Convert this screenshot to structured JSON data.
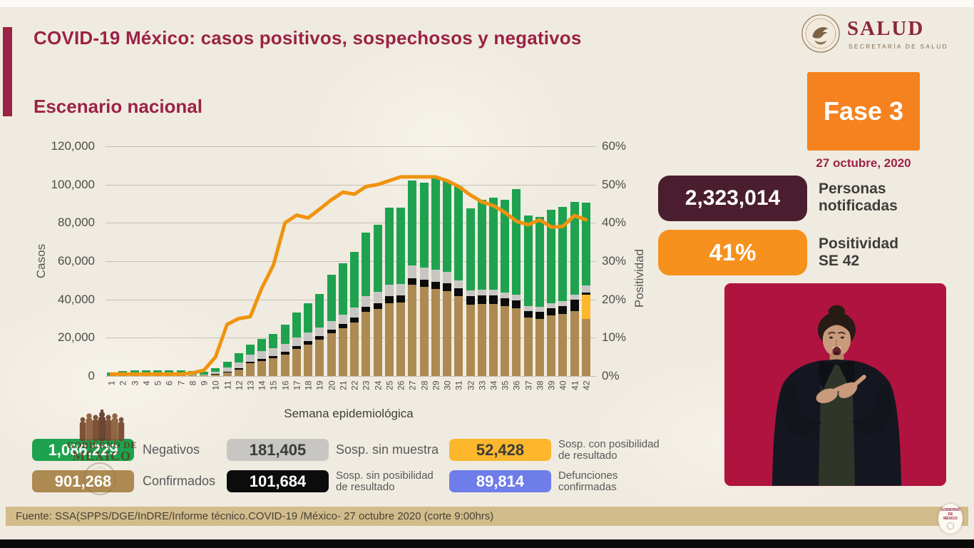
{
  "header": {
    "title": "COVID-19 México: casos positivos, sospechosos y negativos",
    "subtitle": "Escenario nacional",
    "logo": {
      "wordmark": "SALUD",
      "subtext": "SECRETARÍA DE SALUD"
    }
  },
  "phase": {
    "label": "Fase 3",
    "date": "27 octubre, 2020"
  },
  "stats": {
    "personas": {
      "value": "2,323,014",
      "label": "Personas\nnotificadas",
      "color": "#4a1e2f"
    },
    "positividad": {
      "value": "41%",
      "label": "Positividad\nSE 42",
      "color": "#f6911e"
    }
  },
  "legend": {
    "items": [
      {
        "value": "1,086,229",
        "label": "Negativos",
        "color": "#1ea24f"
      },
      {
        "value": "901,268",
        "label": "Confirmados",
        "color": "#ad8a52"
      },
      {
        "value": "181,405",
        "label": "Sosp. sin muestra",
        "color": "#c8c6c3"
      },
      {
        "value": "101,684",
        "label": "Sosp. sin posibilidad\nde resultado",
        "color": "#0c0c0c"
      },
      {
        "value": "52,428",
        "label": "Sosp. con posibilidad\nde resultado",
        "color": "#fcb72d"
      },
      {
        "value": "89,814",
        "label": "Defunciones\nconfirmadas",
        "color": "#6e7de9"
      }
    ]
  },
  "watermark": {
    "line1": "GOBIERNO DE",
    "line2": "MÉXICO"
  },
  "footer": {
    "source": "Fuente: SSA(SPPS/DGE/InDRE/Informe técnico.COVID-19 /México- 27 octubre 2020 (corte 9:00hrs)",
    "badge": "GOBIERNO DE\nMÉXICO"
  },
  "chart_data": {
    "type": "bar",
    "subtype": "stacked-bars-with-line",
    "title": "Escenario nacional",
    "xlabel": "Semana epidemiológica",
    "ylabel": "Casos",
    "y2label": "Positividad",
    "ylim": [
      0,
      120000
    ],
    "y2lim": [
      0,
      60
    ],
    "yticks": [
      "0",
      "20,000",
      "40,000",
      "60,000",
      "80,000",
      "100,000",
      "120,000"
    ],
    "y2ticks": [
      "0%",
      "10%",
      "20%",
      "30%",
      "40%",
      "50%",
      "60%"
    ],
    "grid": true,
    "x": [
      1,
      2,
      3,
      4,
      5,
      6,
      7,
      8,
      9,
      10,
      11,
      12,
      13,
      14,
      15,
      16,
      17,
      18,
      19,
      20,
      21,
      22,
      23,
      24,
      25,
      26,
      27,
      28,
      29,
      30,
      31,
      32,
      33,
      34,
      35,
      36,
      37,
      38,
      39,
      40,
      41,
      42
    ],
    "series": [
      {
        "name": "Confirmados",
        "color": "#ad8a52",
        "values": [
          200,
          200,
          300,
          300,
          300,
          300,
          300,
          300,
          400,
          800,
          1800,
          3500,
          6600,
          8000,
          9300,
          11300,
          14000,
          16500,
          19000,
          22500,
          25000,
          28000,
          33400,
          35000,
          38000,
          38500,
          47600,
          46500,
          45500,
          44500,
          41700,
          37300,
          37500,
          37500,
          36500,
          35400,
          30600,
          30000,
          31500,
          32400,
          34000,
          30000
        ]
      },
      {
        "name": "Sosp. con posibilidad de resultado",
        "color": "#fcb72d",
        "values": [
          0,
          0,
          0,
          0,
          0,
          0,
          0,
          0,
          0,
          0,
          0,
          0,
          0,
          0,
          0,
          0,
          0,
          0,
          0,
          0,
          0,
          0,
          0,
          0,
          0,
          0,
          0,
          0,
          0,
          0,
          0,
          0,
          0,
          0,
          0,
          0,
          0,
          0,
          0,
          0,
          0,
          12500
        ]
      },
      {
        "name": "Sosp. sin posibilidad de resultado",
        "color": "#0c0c0c",
        "values": [
          0,
          0,
          0,
          0,
          0,
          0,
          0,
          0,
          100,
          200,
          300,
          500,
          900,
          1100,
          1200,
          1500,
          1700,
          1800,
          1900,
          1900,
          2200,
          2500,
          2700,
          3000,
          3700,
          3600,
          3500,
          3800,
          3700,
          3800,
          4300,
          4300,
          4500,
          4500,
          4200,
          4100,
          3500,
          3500,
          4000,
          4000,
          6000,
          1000
        ]
      },
      {
        "name": "Sosp. sin muestra",
        "color": "#c8c6c3",
        "values": [
          300,
          300,
          300,
          300,
          300,
          300,
          300,
          300,
          500,
          1200,
          2200,
          3000,
          3700,
          4000,
          4200,
          4100,
          4300,
          4500,
          4400,
          4300,
          4800,
          5200,
          5600,
          5800,
          6200,
          6000,
          6800,
          6500,
          6200,
          6000,
          4000,
          3000,
          3000,
          3000,
          3000,
          3000,
          2500,
          2500,
          2500,
          2600,
          2500,
          4000
        ]
      },
      {
        "name": "Negativos",
        "color": "#1ea24f",
        "values": [
          1500,
          2000,
          2400,
          2400,
          2400,
          2400,
          2400,
          1900,
          1500,
          1800,
          3200,
          5000,
          5300,
          6400,
          7300,
          10100,
          13000,
          15200,
          17700,
          24300,
          27000,
          29300,
          33300,
          35200,
          40100,
          39900,
          44100,
          44200,
          48600,
          47700,
          49000,
          42900,
          47000,
          48000,
          48300,
          55000,
          47400,
          47000,
          49000,
          49500,
          48500,
          43000
        ]
      }
    ],
    "line": {
      "name": "Positividad (%)",
      "color": "#f0930f",
      "values": [
        0.5,
        0.5,
        0.5,
        0.5,
        0.5,
        0.5,
        0.5,
        0.8,
        1.5,
        5,
        13.5,
        15,
        15.5,
        23,
        29,
        40,
        42,
        41.3,
        43.6,
        46,
        48,
        47.5,
        49.5,
        50,
        51,
        52,
        52,
        52,
        52,
        51,
        49.5,
        47.3,
        45.5,
        44.5,
        42.7,
        40.4,
        39.5,
        40.8,
        38.9,
        39.1,
        41.9,
        40.8
      ]
    },
    "legend_position": "bottom"
  }
}
